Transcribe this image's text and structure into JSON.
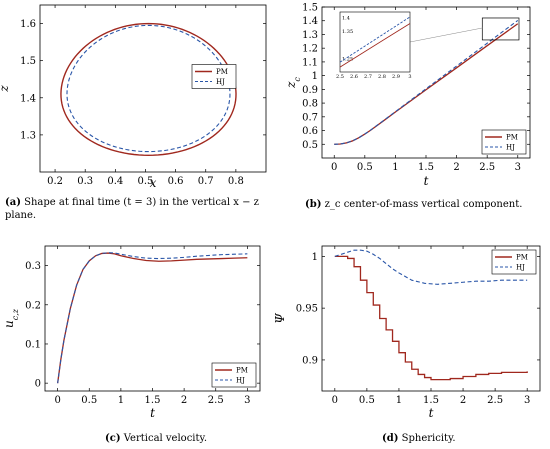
{
  "colors": {
    "pm": "#a0281e",
    "hj": "#2a56a8",
    "axis": "#000000",
    "grid": "#bbbbbb"
  },
  "captions": {
    "a": {
      "tag": "(a)",
      "text": "Shape at final time (t = 3) in the vertical x − z plane."
    },
    "b": {
      "tag": "(b)",
      "text": "z_c center-of-mass vertical component."
    },
    "c": {
      "tag": "(c)",
      "text": "Vertical velocity."
    },
    "d": {
      "tag": "(d)",
      "text": "Sphericity."
    }
  },
  "chart_data": [
    {
      "id": "a",
      "type": "line",
      "title": "",
      "xlabel": "x",
      "ylabel": "z",
      "xlim": [
        0.15,
        0.9
      ],
      "ylim": [
        1.2,
        1.65
      ],
      "xticks": [
        0.2,
        0.3,
        0.4,
        0.5,
        0.6,
        0.7,
        0.8
      ],
      "yticks": [
        1.3,
        1.4,
        1.5,
        1.6
      ],
      "legend": "center-right",
      "series": [
        {
          "name": "PM",
          "cx": 0.51,
          "cz": 1.42,
          "rx": 0.29,
          "rz_top": 0.18,
          "rz_bot": 0.175
        },
        {
          "name": "HJ",
          "cx": 0.51,
          "cz": 1.42,
          "rx": 0.27,
          "rz_top": 0.175,
          "rz_bot": 0.165
        }
      ]
    },
    {
      "id": "b",
      "type": "line",
      "title": "",
      "xlabel": "t",
      "ylabel": "z_c",
      "xlim": [
        -0.2,
        3.2
      ],
      "ylim": [
        0.4,
        1.5
      ],
      "xticks": [
        0,
        0.5,
        1,
        1.5,
        2,
        2.5,
        3
      ],
      "yticks": [
        0.5,
        0.6,
        0.7,
        0.8,
        0.9,
        1,
        1.1,
        1.2,
        1.3,
        1.4,
        1.5
      ],
      "legend": "bottom-right",
      "series": [
        {
          "name": "PM",
          "x": [
            0,
            0.1,
            0.2,
            0.3,
            0.4,
            0.5,
            0.6,
            0.8,
            1,
            1.5,
            2,
            2.5,
            3
          ],
          "y": [
            0.5,
            0.502,
            0.51,
            0.525,
            0.547,
            0.574,
            0.604,
            0.669,
            0.735,
            0.897,
            1.057,
            1.218,
            1.378
          ]
        },
        {
          "name": "HJ",
          "x": [
            0,
            0.1,
            0.2,
            0.3,
            0.4,
            0.5,
            0.6,
            0.8,
            1,
            1.5,
            2,
            2.5,
            3
          ],
          "y": [
            0.5,
            0.502,
            0.51,
            0.525,
            0.547,
            0.575,
            0.605,
            0.671,
            0.738,
            0.904,
            1.07,
            1.236,
            1.402
          ]
        }
      ],
      "inset": {
        "xlim": [
          2.5,
          3.0
        ],
        "ylim": [
          1.2,
          1.42
        ],
        "xticks": [
          2.5,
          2.6,
          2.7,
          2.8,
          2.9,
          3
        ],
        "yticks": [
          1.25,
          1.3,
          1.35,
          1.4
        ],
        "xticklabels": [
          "2.5",
          "2.6",
          "2.7",
          "2.8",
          "2.9",
          "3"
        ],
        "yticklabels": [
          "1.25",
          "",
          "1.35",
          "1.4"
        ]
      }
    },
    {
      "id": "c",
      "type": "line",
      "title": "",
      "xlabel": "t",
      "ylabel": "u_c,z",
      "xlim": [
        -0.2,
        3.2
      ],
      "ylim": [
        -0.02,
        0.35
      ],
      "xticks": [
        0,
        0.5,
        1,
        1.5,
        2,
        2.5,
        3
      ],
      "yticks": [
        0,
        0.1,
        0.2,
        0.3
      ],
      "legend": "bottom-right",
      "series": [
        {
          "name": "PM",
          "x": [
            0,
            0.05,
            0.1,
            0.2,
            0.3,
            0.4,
            0.5,
            0.6,
            0.7,
            0.8,
            0.9,
            1.0,
            1.2,
            1.4,
            1.6,
            1.8,
            2.0,
            2.2,
            2.4,
            2.6,
            2.8,
            3.0
          ],
          "y": [
            0.0,
            0.06,
            0.11,
            0.19,
            0.25,
            0.29,
            0.312,
            0.325,
            0.331,
            0.332,
            0.33,
            0.325,
            0.318,
            0.313,
            0.311,
            0.312,
            0.314,
            0.316,
            0.317,
            0.318,
            0.319,
            0.32
          ]
        },
        {
          "name": "HJ",
          "x": [
            0,
            0.05,
            0.1,
            0.2,
            0.3,
            0.4,
            0.5,
            0.6,
            0.7,
            0.8,
            0.9,
            1.0,
            1.2,
            1.4,
            1.6,
            1.8,
            2.0,
            2.2,
            2.4,
            2.6,
            2.8,
            3.0
          ],
          "y": [
            0.0,
            0.06,
            0.11,
            0.19,
            0.25,
            0.29,
            0.312,
            0.325,
            0.331,
            0.333,
            0.332,
            0.329,
            0.323,
            0.319,
            0.318,
            0.319,
            0.321,
            0.324,
            0.326,
            0.328,
            0.329,
            0.33
          ]
        }
      ]
    },
    {
      "id": "d",
      "type": "line",
      "title": "",
      "xlabel": "t",
      "ylabel": "Ψ",
      "xlim": [
        -0.2,
        3.2
      ],
      "ylim": [
        0.87,
        1.01
      ],
      "xticks": [
        0,
        0.5,
        1,
        1.5,
        2,
        2.5,
        3
      ],
      "yticks": [
        0.9,
        0.95,
        1
      ],
      "legend": "top-right",
      "series": [
        {
          "name": "PM",
          "x": [
            0,
            0.1,
            0.2,
            0.3,
            0.4,
            0.5,
            0.6,
            0.7,
            0.8,
            0.9,
            1.0,
            1.1,
            1.2,
            1.3,
            1.4,
            1.5,
            1.6,
            1.8,
            2.0,
            2.2,
            2.4,
            2.6,
            2.8,
            3.0
          ],
          "y": [
            1.0,
            1.0,
            0.998,
            0.99,
            0.977,
            0.965,
            0.953,
            0.94,
            0.929,
            0.918,
            0.907,
            0.898,
            0.891,
            0.886,
            0.883,
            0.881,
            0.881,
            0.882,
            0.884,
            0.886,
            0.887,
            0.888,
            0.888,
            0.889
          ]
        },
        {
          "name": "HJ",
          "x": [
            0,
            0.1,
            0.2,
            0.3,
            0.4,
            0.5,
            0.6,
            0.7,
            0.8,
            0.9,
            1.0,
            1.2,
            1.4,
            1.6,
            1.8,
            2.0,
            2.2,
            2.4,
            2.6,
            2.8,
            3.0
          ],
          "y": [
            1.0,
            1.002,
            1.004,
            1.006,
            1.006,
            1.005,
            1.002,
            0.998,
            0.993,
            0.988,
            0.984,
            0.977,
            0.974,
            0.973,
            0.974,
            0.975,
            0.976,
            0.976,
            0.977,
            0.977,
            0.977
          ]
        }
      ]
    }
  ]
}
